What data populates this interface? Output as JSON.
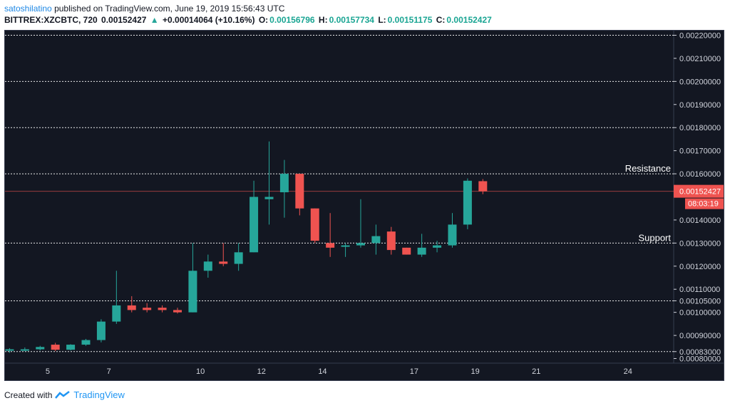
{
  "header": {
    "author": "satoshilatino",
    "published": "published on TradingView.com, June 19, 2019 15:56:43 UTC",
    "symbol": "BITTREX:XZCBTC, 720",
    "price": "0.00152427",
    "change": "+0.00014064 (+10.16%)",
    "o_label": "O:",
    "o_val": "0.00156796",
    "h_label": "H:",
    "h_val": "0.00157734",
    "l_label": "L:",
    "l_val": "0.00151175",
    "c_label": "C:",
    "c_val": "0.00152427"
  },
  "footer": {
    "created": "Created with",
    "brand": "TradingView"
  },
  "colors": {
    "bg": "#131722",
    "up": "#26a69a",
    "down": "#ef5350",
    "grid": "#ffffff",
    "axis": "#d1d4dc"
  },
  "chart_data": {
    "type": "candlestick",
    "ylim": [
      0.00078,
      0.00222
    ],
    "xlim": [
      3.6,
      25.5
    ],
    "y_ticks": [
      "0.00220000",
      "0.00210000",
      "0.00200000",
      "0.00190000",
      "0.00180000",
      "0.00170000",
      "0.00160000",
      "0.00140000",
      "0.00130000",
      "0.00120000",
      "0.00110000",
      "0.00105000",
      "0.00100000",
      "0.00090000",
      "0.00083000",
      "0.00080000"
    ],
    "x_ticks": [
      {
        "day": 5,
        "label": "5"
      },
      {
        "day": 7,
        "label": "7"
      },
      {
        "day": 10,
        "label": "10"
      },
      {
        "day": 12,
        "label": "12"
      },
      {
        "day": 14,
        "label": "14"
      },
      {
        "day": 17,
        "label": "17"
      },
      {
        "day": 19,
        "label": "19"
      },
      {
        "day": 21,
        "label": "21"
      },
      {
        "day": 24,
        "label": "24"
      }
    ],
    "levels": [
      0.0022,
      0.002,
      0.0018,
      0.0016,
      0.0013,
      0.00105,
      0.00083
    ],
    "annotations": [
      {
        "text": "Resistance",
        "y": 0.0016
      },
      {
        "text": "Support",
        "y": 0.0013
      }
    ],
    "last_price": {
      "value": 0.00152427,
      "label": "0.00152427",
      "countdown": "08:03:19"
    },
    "candles": [
      {
        "t": 3.75,
        "o": 0.000835,
        "h": 0.000845,
        "l": 0.000825,
        "c": 0.00084
      },
      {
        "t": 4.25,
        "o": 0.00084,
        "h": 0.000848,
        "l": 0.000832,
        "c": 0.00084
      },
      {
        "t": 4.75,
        "o": 0.00084,
        "h": 0.000855,
        "l": 0.000835,
        "c": 0.00085
      },
      {
        "t": 5.25,
        "o": 0.00086,
        "h": 0.000868,
        "l": 0.000832,
        "c": 0.000838
      },
      {
        "t": 5.75,
        "o": 0.000838,
        "h": 0.000862,
        "l": 0.000835,
        "c": 0.00086
      },
      {
        "t": 6.25,
        "o": 0.00086,
        "h": 0.000885,
        "l": 0.000855,
        "c": 0.00088
      },
      {
        "t": 6.75,
        "o": 0.00088,
        "h": 0.00097,
        "l": 0.00087,
        "c": 0.00096
      },
      {
        "t": 7.25,
        "o": 0.00096,
        "h": 0.00118,
        "l": 0.00095,
        "c": 0.00103
      },
      {
        "t": 7.75,
        "o": 0.00103,
        "h": 0.00107,
        "l": 0.001,
        "c": 0.00101
      },
      {
        "t": 8.25,
        "o": 0.00102,
        "h": 0.00104,
        "l": 0.001,
        "c": 0.00101
      },
      {
        "t": 8.75,
        "o": 0.00102,
        "h": 0.00103,
        "l": 0.001,
        "c": 0.00101
      },
      {
        "t": 9.25,
        "o": 0.00101,
        "h": 0.00102,
        "l": 0.000995,
        "c": 0.001
      },
      {
        "t": 9.75,
        "o": 0.001,
        "h": 0.0013,
        "l": 0.001,
        "c": 0.00118
      },
      {
        "t": 10.25,
        "o": 0.00118,
        "h": 0.00125,
        "l": 0.00115,
        "c": 0.00122
      },
      {
        "t": 10.75,
        "o": 0.00122,
        "h": 0.0013,
        "l": 0.0012,
        "c": 0.00121
      },
      {
        "t": 11.25,
        "o": 0.00121,
        "h": 0.0013,
        "l": 0.00118,
        "c": 0.00126
      },
      {
        "t": 11.75,
        "o": 0.00126,
        "h": 0.00157,
        "l": 0.00126,
        "c": 0.0015
      },
      {
        "t": 12.25,
        "o": 0.00149,
        "h": 0.00174,
        "l": 0.00138,
        "c": 0.0015
      },
      {
        "t": 12.75,
        "o": 0.00152,
        "h": 0.00166,
        "l": 0.00141,
        "c": 0.0016
      },
      {
        "t": 13.25,
        "o": 0.0016,
        "h": 0.0016,
        "l": 0.00142,
        "c": 0.00145
      },
      {
        "t": 13.75,
        "o": 0.00145,
        "h": 0.00145,
        "l": 0.0013,
        "c": 0.00131
      },
      {
        "t": 14.25,
        "o": 0.0013,
        "h": 0.00143,
        "l": 0.00124,
        "c": 0.00128
      },
      {
        "t": 14.75,
        "o": 0.00129,
        "h": 0.0013,
        "l": 0.00124,
        "c": 0.00129
      },
      {
        "t": 15.25,
        "o": 0.00129,
        "h": 0.00149,
        "l": 0.00128,
        "c": 0.0013
      },
      {
        "t": 15.75,
        "o": 0.0013,
        "h": 0.00138,
        "l": 0.00125,
        "c": 0.00133
      },
      {
        "t": 16.25,
        "o": 0.00135,
        "h": 0.00137,
        "l": 0.00125,
        "c": 0.00127
      },
      {
        "t": 16.75,
        "o": 0.00128,
        "h": 0.00128,
        "l": 0.00125,
        "c": 0.00125
      },
      {
        "t": 17.25,
        "o": 0.00125,
        "h": 0.00134,
        "l": 0.00124,
        "c": 0.00128
      },
      {
        "t": 17.75,
        "o": 0.00128,
        "h": 0.00131,
        "l": 0.00126,
        "c": 0.00129
      },
      {
        "t": 18.25,
        "o": 0.00129,
        "h": 0.00143,
        "l": 0.00128,
        "c": 0.00138
      },
      {
        "t": 18.75,
        "o": 0.00138,
        "h": 0.00158,
        "l": 0.00136,
        "c": 0.00157
      },
      {
        "t": 19.25,
        "o": 0.00156796,
        "h": 0.00157734,
        "l": 0.00151175,
        "c": 0.00152427
      }
    ]
  }
}
